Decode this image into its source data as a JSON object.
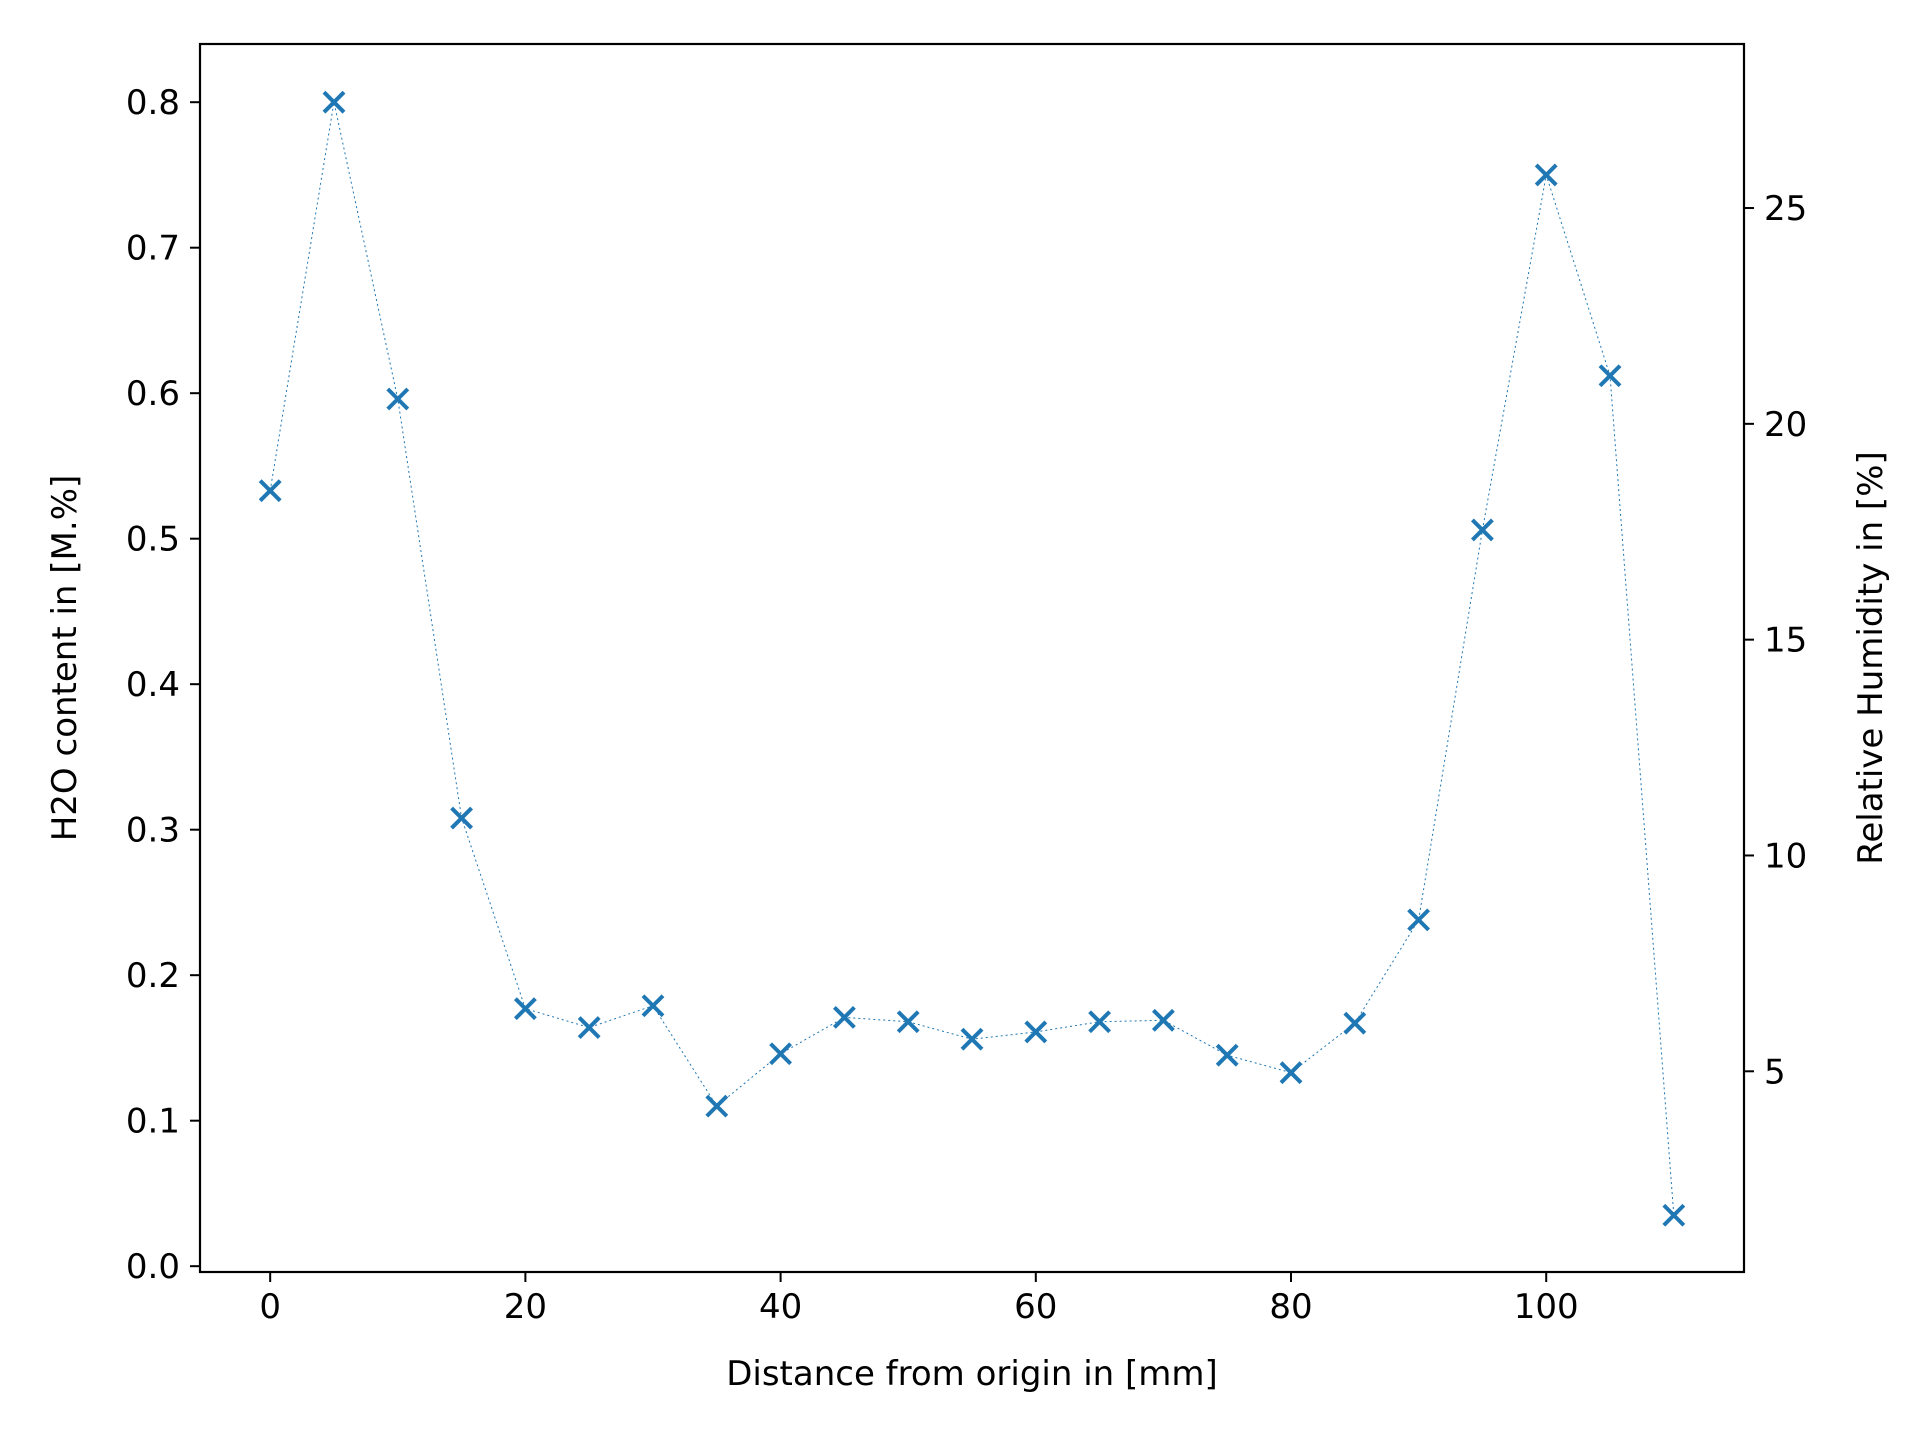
{
  "chart_data": {
    "type": "scatter",
    "title": "",
    "xlabel": "Distance from origin in [mm]",
    "ylabel": "H2O content in [M.%]",
    "y2label": "Relative Humidity in [%]",
    "xlim": [
      -5.5,
      115.5
    ],
    "ylim": [
      -0.004,
      0.84
    ],
    "y2lim": [
      0.35,
      28.8
    ],
    "xticks": [
      0,
      20,
      40,
      60,
      80,
      100
    ],
    "yticks": [
      0.0,
      0.1,
      0.2,
      0.3,
      0.4,
      0.5,
      0.6,
      0.7,
      0.8
    ],
    "y2ticks": [
      5,
      10,
      15,
      20,
      25
    ],
    "grid": false,
    "marker": "x",
    "line_style": "dotted",
    "colors": {
      "series": "#1f77b4",
      "axes": "#000000",
      "background": "#ffffff"
    },
    "series": [
      {
        "x": [
          0,
          5,
          10,
          15,
          20,
          25,
          30,
          35,
          40,
          45,
          50,
          55,
          60,
          65,
          70,
          75,
          80,
          85,
          90,
          95,
          100,
          105,
          110
        ],
        "values": [
          0.533,
          0.8,
          0.596,
          0.308,
          0.177,
          0.164,
          0.179,
          0.11,
          0.146,
          0.171,
          0.168,
          0.156,
          0.161,
          0.168,
          0.169,
          0.145,
          0.133,
          0.167,
          0.238,
          0.506,
          0.75,
          0.612,
          0.035
        ]
      }
    ]
  }
}
